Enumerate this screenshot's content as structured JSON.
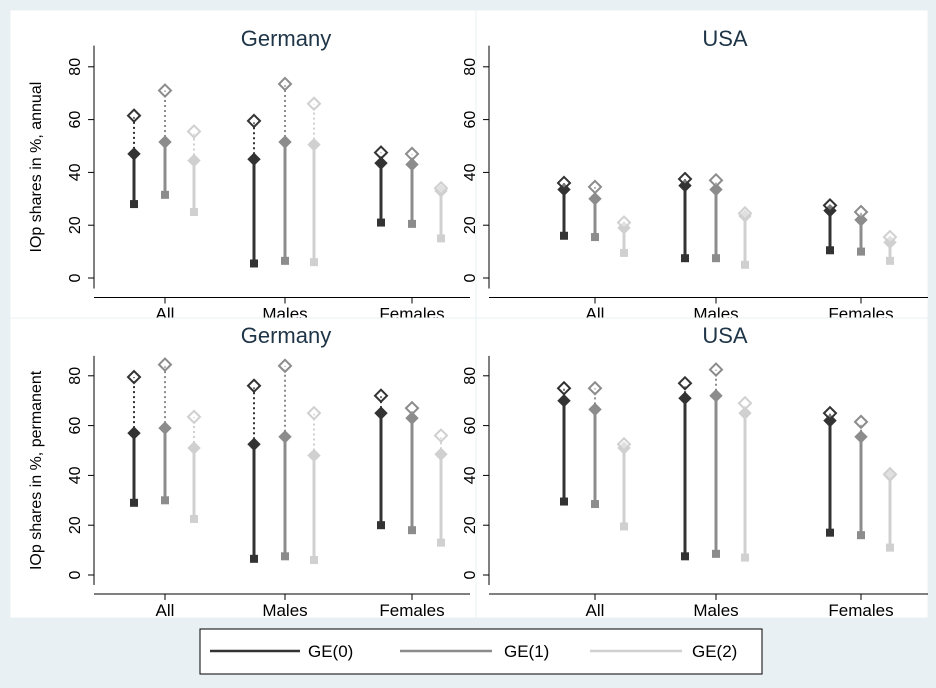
{
  "chart_data": [
    {
      "type": "range",
      "title": "Germany",
      "ylabel": "IOp shares in %, annual",
      "categories": [
        "All",
        "Males",
        "Females"
      ],
      "ylim": [
        -4,
        88
      ],
      "yticks": [
        0,
        20,
        40,
        60,
        80
      ],
      "series": [
        {
          "name": "GE(0)",
          "color": "#333333",
          "lower": [
            28,
            5.5,
            21
          ],
          "point": [
            47,
            45,
            43.5
          ],
          "upper": [
            61.5,
            59.5,
            47.5
          ]
        },
        {
          "name": "GE(1)",
          "color": "#8c8c8c",
          "lower": [
            31.5,
            6.5,
            20.5
          ],
          "point": [
            51.5,
            51.5,
            43
          ],
          "upper": [
            71,
            73.5,
            47
          ]
        },
        {
          "name": "GE(2)",
          "color": "#d0d0d0",
          "lower": [
            25,
            6,
            15
          ],
          "point": [
            44.5,
            50.5,
            33
          ],
          "upper": [
            55.5,
            66,
            34
          ]
        }
      ]
    },
    {
      "type": "range",
      "title": "USA",
      "ylabel": "",
      "categories": [
        "All",
        "Males",
        "Females"
      ],
      "ylim": [
        -4,
        88
      ],
      "yticks": [
        0,
        20,
        40,
        60,
        80
      ],
      "series": [
        {
          "name": "GE(0)",
          "color": "#333333",
          "lower": [
            16,
            7.5,
            10.5
          ],
          "point": [
            33.5,
            35,
            25.5
          ],
          "upper": [
            36,
            37.5,
            27.5
          ]
        },
        {
          "name": "GE(1)",
          "color": "#8c8c8c",
          "lower": [
            15.5,
            7.5,
            10
          ],
          "point": [
            30,
            33.5,
            22
          ],
          "upper": [
            34.5,
            37,
            25
          ]
        },
        {
          "name": "GE(2)",
          "color": "#d0d0d0",
          "lower": [
            9.5,
            5,
            6.5
          ],
          "point": [
            19,
            23.5,
            13.5
          ],
          "upper": [
            21,
            24.5,
            15.5
          ]
        }
      ]
    },
    {
      "type": "range",
      "title": "Germany",
      "ylabel": "IOp shares in %, permanent",
      "categories": [
        "All",
        "Males",
        "Females"
      ],
      "ylim": [
        -4,
        88
      ],
      "yticks": [
        0,
        20,
        40,
        60,
        80
      ],
      "series": [
        {
          "name": "GE(0)",
          "color": "#333333",
          "lower": [
            29,
            6.5,
            20
          ],
          "point": [
            57,
            52.5,
            65
          ],
          "upper": [
            79.5,
            76,
            72
          ]
        },
        {
          "name": "GE(1)",
          "color": "#8c8c8c",
          "lower": [
            30,
            7.5,
            18
          ],
          "point": [
            59,
            55.5,
            63
          ],
          "upper": [
            84.5,
            84,
            67
          ]
        },
        {
          "name": "GE(2)",
          "color": "#d0d0d0",
          "lower": [
            22.5,
            6,
            13
          ],
          "point": [
            51,
            48,
            48.5
          ],
          "upper": [
            63.5,
            65,
            56
          ]
        }
      ]
    },
    {
      "type": "range",
      "title": "USA",
      "ylabel": "",
      "categories": [
        "All",
        "Males",
        "Females"
      ],
      "ylim": [
        -4,
        88
      ],
      "yticks": [
        0,
        20,
        40,
        60,
        80
      ],
      "series": [
        {
          "name": "GE(0)",
          "color": "#333333",
          "lower": [
            29.5,
            7.5,
            17
          ],
          "point": [
            70,
            71,
            62
          ],
          "upper": [
            75,
            77,
            65
          ]
        },
        {
          "name": "GE(1)",
          "color": "#8c8c8c",
          "lower": [
            28.5,
            8.5,
            16
          ],
          "point": [
            66.5,
            72,
            55.5
          ],
          "upper": [
            75,
            82.5,
            61.5
          ]
        },
        {
          "name": "GE(2)",
          "color": "#d0d0d0",
          "lower": [
            19.5,
            7,
            11
          ],
          "point": [
            51,
            65,
            40
          ],
          "upper": [
            52.5,
            69,
            40.5
          ]
        }
      ]
    }
  ],
  "legend": {
    "items": [
      {
        "label": "GE(0)",
        "color": "#333333"
      },
      {
        "label": "GE(1)",
        "color": "#8c8c8c"
      },
      {
        "label": "GE(2)",
        "color": "#d0d0d0"
      }
    ]
  }
}
